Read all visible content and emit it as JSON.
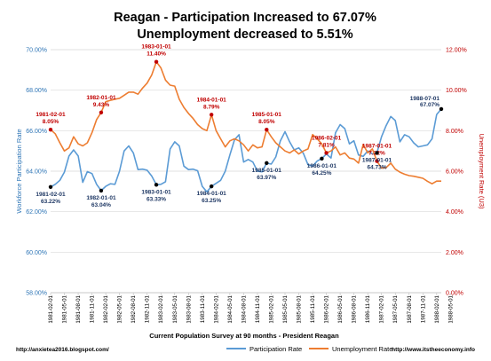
{
  "chart_data": {
    "type": "line",
    "title_line1": "Reagan - Participation Increased to 67.07%",
    "title_line2": "Unemployment decreased to 5.51%",
    "xlabel": "Current Population Survey at 90 months - President Reagan",
    "ylabel_left": "Workforce Participation Rate",
    "ylabel_right": "Unemployment Rate (U3)",
    "ylim_left": [
      0.58,
      0.7
    ],
    "ylim_right": [
      0.0,
      0.12
    ],
    "yticks_left": [
      "58.00%",
      "60.00%",
      "62.00%",
      "64.00%",
      "66.00%",
      "68.00%",
      "70.00%"
    ],
    "yticks_right": [
      "0.00%",
      "2.00%",
      "4.00%",
      "6.00%",
      "8.00%",
      "10.00%",
      "12.00%"
    ],
    "grid": true,
    "legend_position": "bottom",
    "colors": {
      "participation": "#5b9bd5",
      "unemployment": "#ed7d31",
      "annotation_blue": "#1f3864",
      "annotation_red": "#c00000",
      "axis_left": "#2e75b6",
      "axis_right": "#c00000"
    },
    "x_tick_labels": [
      "1981-02-01",
      "1981-05-01",
      "1981-08-01",
      "1981-11-01",
      "1982-02-01",
      "1982-05-01",
      "1982-08-01",
      "1982-11-01",
      "1983-02-01",
      "1983-05-01",
      "1983-08-01",
      "1983-11-01",
      "1984-02-01",
      "1984-05-01",
      "1984-08-01",
      "1984-11-01",
      "1985-02-01",
      "1985-05-01",
      "1985-08-01",
      "1985-11-01",
      "1986-02-01",
      "1986-05-01",
      "1986-08-01",
      "1986-11-01",
      "1987-02-01",
      "1987-05-01",
      "1987-08-01",
      "1987-11-01",
      "1988-02-01",
      "1988-05-01"
    ],
    "series": [
      {
        "name": "Participation Rate",
        "axis": "left",
        "start": "1981-02",
        "values": [
          0.6322,
          0.6335,
          0.6355,
          0.6395,
          0.6475,
          0.6505,
          0.6475,
          0.6345,
          0.6398,
          0.6388,
          0.6335,
          0.6304,
          0.6325,
          0.6338,
          0.6335,
          0.64,
          0.65,
          0.6525,
          0.649,
          0.6408,
          0.641,
          0.6405,
          0.6376,
          0.6333,
          0.6335,
          0.6348,
          0.651,
          0.6545,
          0.6525,
          0.6425,
          0.6408,
          0.641,
          0.6402,
          0.6325,
          0.6298,
          0.6325,
          0.634,
          0.6355,
          0.64,
          0.648,
          0.6555,
          0.658,
          0.6445,
          0.6458,
          0.6445,
          0.64,
          0.6397,
          0.644,
          0.6435,
          0.647,
          0.655,
          0.6595,
          0.6545,
          0.6505,
          0.6515,
          0.6488,
          0.6432,
          0.6425,
          0.645,
          0.6462,
          0.6485,
          0.6465,
          0.659,
          0.663,
          0.661,
          0.6535,
          0.655,
          0.648,
          0.6473,
          0.65,
          0.6485,
          0.649,
          0.657,
          0.6625,
          0.667,
          0.665,
          0.6545,
          0.658,
          0.657,
          0.654,
          0.652,
          0.6525,
          0.653,
          0.656,
          0.668,
          0.6707
        ]
      },
      {
        "name": "Unemployment Rate",
        "axis": "right",
        "start": "1981-02",
        "values": [
          0.0805,
          0.0785,
          0.074,
          0.07,
          0.0715,
          0.077,
          0.0735,
          0.0725,
          0.074,
          0.079,
          0.0855,
          0.089,
          0.0943,
          0.095,
          0.0955,
          0.096,
          0.0975,
          0.099,
          0.099,
          0.098,
          0.101,
          0.1035,
          0.1075,
          0.114,
          0.111,
          0.105,
          0.1025,
          0.102,
          0.0955,
          0.0915,
          0.0885,
          0.086,
          0.083,
          0.081,
          0.08,
          0.0879,
          0.08,
          0.076,
          0.072,
          0.075,
          0.076,
          0.075,
          0.073,
          0.07,
          0.073,
          0.0715,
          0.072,
          0.0805,
          0.077,
          0.074,
          0.072,
          0.07,
          0.069,
          0.0705,
          0.0685,
          0.07,
          0.071,
          0.0781,
          0.076,
          0.0735,
          0.069,
          0.07,
          0.072,
          0.068,
          0.069,
          0.0665,
          0.066,
          0.064,
          0.0732,
          0.069,
          0.071,
          0.065,
          0.0615,
          0.0618,
          0.064,
          0.061,
          0.0595,
          0.0585,
          0.0578,
          0.0575,
          0.057,
          0.0565,
          0.055,
          0.0538,
          0.0551,
          0.0551
        ]
      }
    ],
    "annotations": [
      {
        "date": "1981-02-01",
        "value": "8.05%",
        "series": "Unemployment Rate",
        "color": "red"
      },
      {
        "date": "1981-02-01",
        "value": "63.22%",
        "series": "Participation Rate",
        "color": "blue"
      },
      {
        "date": "1982-01-01",
        "value": "9.43%",
        "series": "Unemployment Rate",
        "color": "red"
      },
      {
        "date": "1982-01-01",
        "value": "63.04%",
        "series": "Participation Rate",
        "color": "blue"
      },
      {
        "date": "1983-01-01",
        "value": "11.40%",
        "series": "Unemployment Rate",
        "color": "red"
      },
      {
        "date": "1983-01-01",
        "value": "63.33%",
        "series": "Participation Rate",
        "color": "blue"
      },
      {
        "date": "1984-01-01",
        "value": "8.79%",
        "series": "Unemployment Rate",
        "color": "red"
      },
      {
        "date": "1984-01-01",
        "value": "63.25%",
        "series": "Participation Rate",
        "color": "blue"
      },
      {
        "date": "1985-01-01",
        "value": "8.05%",
        "series": "Unemployment Rate",
        "color": "red"
      },
      {
        "date": "1985-01-01",
        "value": "63.97%",
        "series": "Participation Rate",
        "color": "blue"
      },
      {
        "date": "1986-02-01",
        "value": "7.81%",
        "series": "Unemployment Rate",
        "color": "red"
      },
      {
        "date": "1986-01-01",
        "value": "64.25%",
        "series": "Participation Rate",
        "color": "blue"
      },
      {
        "date": "1987-01-01",
        "value": "7.32%",
        "series": "Unemployment Rate",
        "color": "red"
      },
      {
        "date": "1987-01-01",
        "value": "64.73%",
        "series": "Participation Rate",
        "color": "blue"
      },
      {
        "date": "1988-07-01",
        "value": "67.07%",
        "series": "Participation Rate",
        "color": "blue"
      }
    ]
  },
  "footer": {
    "left": "http://anxietea2016.blogspot.com/",
    "right": "http://www.itstheeconomy.info"
  }
}
